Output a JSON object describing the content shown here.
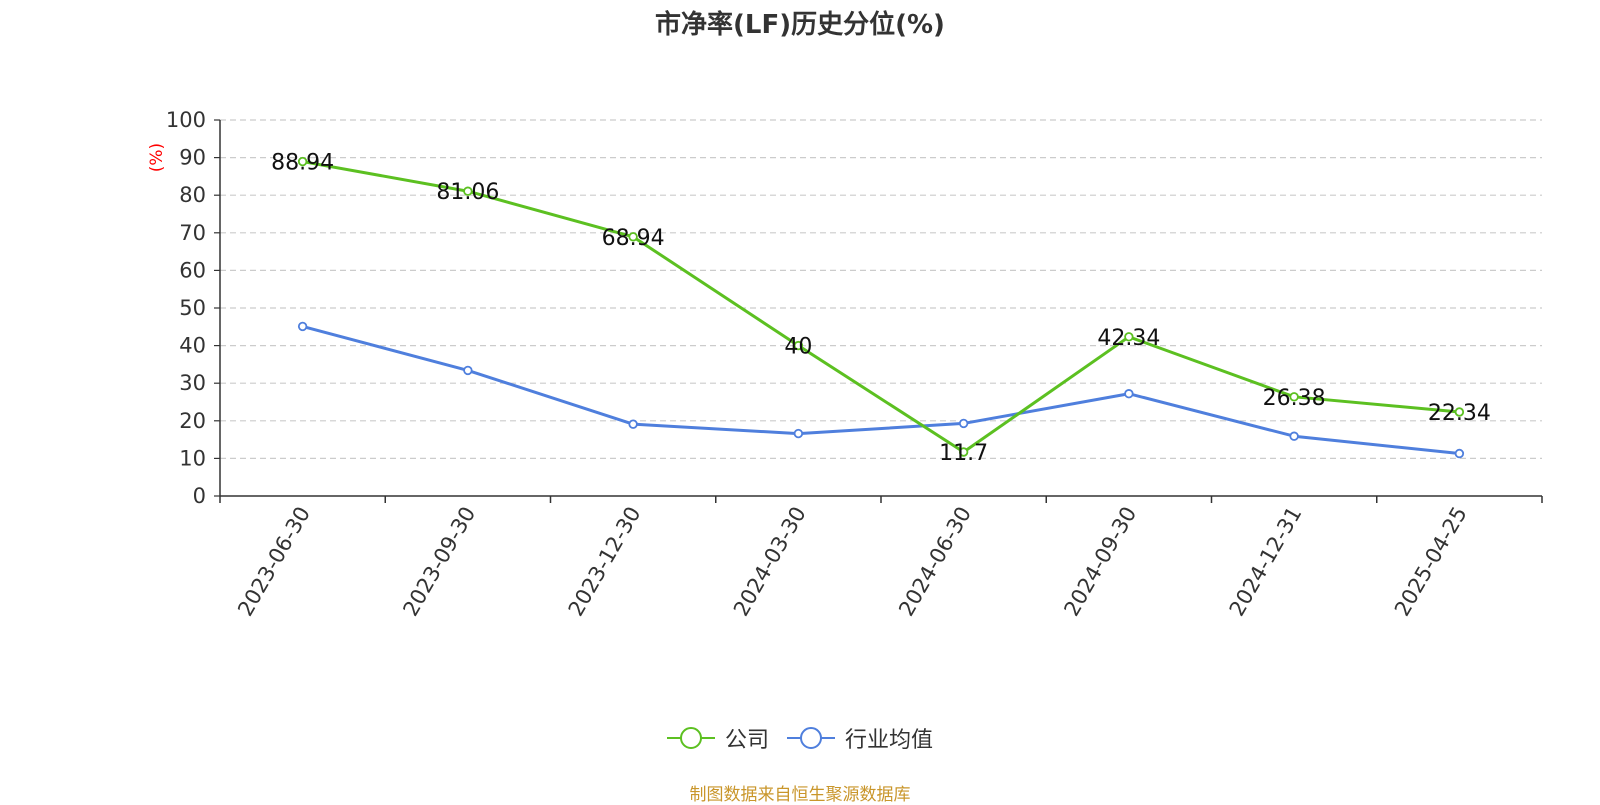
{
  "title": "市净率(LF)历史分位(%)",
  "source_note": "制图数据来自恒生聚源数据库",
  "colors": {
    "company": "#5cc021",
    "industry": "#4f7fdd",
    "axis": "#333333",
    "grid": "#cccccc",
    "unit": "#ff0000"
  },
  "legend": [
    {
      "name": "公司",
      "color": "#5cc021"
    },
    {
      "name": "行业均值",
      "color": "#4f7fdd"
    }
  ],
  "chart_data": {
    "type": "line",
    "title": "市净率(LF)历史分位(%)",
    "ylabel": "(%)",
    "xlabel": "",
    "ylim": [
      0,
      100
    ],
    "yticks": [
      0,
      10,
      20,
      30,
      40,
      50,
      60,
      70,
      80,
      90,
      100
    ],
    "grid": true,
    "legend_position": "bottom",
    "categories": [
      "2023-06-30",
      "2023-09-30",
      "2023-12-30",
      "2024-03-30",
      "2024-06-30",
      "2024-09-30",
      "2024-12-31",
      "2025-04-25"
    ],
    "series": [
      {
        "name": "公司",
        "values": [
          88.94,
          81.06,
          68.94,
          40,
          11.7,
          42.34,
          26.38,
          22.34
        ],
        "labels": [
          "88.94",
          "81.06",
          "68.94",
          "40",
          "11.7",
          "42.34",
          "26.38",
          "22.34"
        ]
      },
      {
        "name": "行业均值",
        "values": [
          45.1,
          33.4,
          19.1,
          16.6,
          19.3,
          27.2,
          15.9,
          11.3
        ]
      }
    ]
  }
}
